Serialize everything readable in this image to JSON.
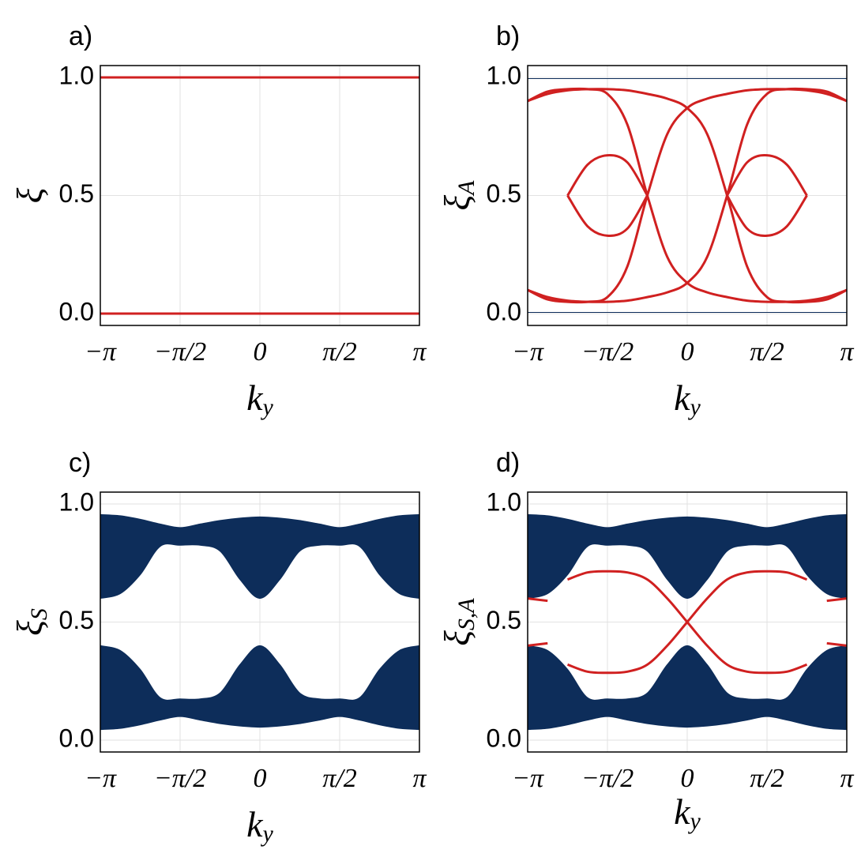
{
  "chart_data": [
    {
      "type": "line",
      "panel": "a)",
      "xlabel": "k",
      "xlabel_sub": "y",
      "ylabel": "ξ",
      "xlim": [
        -3.1416,
        3.1416
      ],
      "ylim": [
        -0.05,
        1.05
      ],
      "grid": true,
      "xticks": [
        {
          "value": -3.1416,
          "label": "−π"
        },
        {
          "value": -1.5708,
          "label": "−π/2"
        },
        0,
        {
          "value": 1.5708,
          "label": "π/2"
        },
        {
          "value": 3.1416,
          "label": "π"
        }
      ],
      "yticks": [
        {
          "value": 0,
          "label": "0.0"
        },
        {
          "value": 0.5,
          "label": "0.5"
        },
        {
          "value": 1,
          "label": "1.0"
        }
      ],
      "x": [
        -3.1416,
        3.1416
      ],
      "series": [
        {
          "color": "#d02020",
          "width": 3,
          "values": [
            1,
            1
          ]
        },
        {
          "color": "#d02020",
          "width": 3,
          "values": [
            0,
            0
          ]
        }
      ]
    },
    {
      "type": "line",
      "panel": "b)",
      "xlabel": "k",
      "xlabel_sub": "y",
      "ylabel": "ξ",
      "ylabel_sub": "A",
      "xlim": [
        -3.1416,
        3.1416
      ],
      "ylim": [
        -0.05,
        1.05
      ],
      "grid": true,
      "xticks": [
        {
          "value": -3.1416,
          "label": "−π"
        },
        {
          "value": -1.5708,
          "label": "−π/2"
        },
        0,
        {
          "value": 1.5708,
          "label": "π/2"
        },
        {
          "value": 3.1416,
          "label": "π"
        }
      ],
      "yticks": [
        {
          "value": 0,
          "label": "0.0"
        },
        {
          "value": 0.5,
          "label": "0.5"
        },
        {
          "value": 1,
          "label": "1.0"
        }
      ],
      "x": [
        -3.1416,
        -2.7489,
        -2.3562,
        -1.9635,
        -1.5708,
        -1.1781,
        -0.7854,
        -0.3927,
        0,
        0.3927,
        0.7854,
        1.1781,
        1.5708,
        1.9635,
        2.3562,
        2.7489,
        3.1416
      ],
      "series": [
        {
          "color": "#0d2d5a",
          "width": 1,
          "values": [
            0.995,
            0.995,
            0.995,
            0.995,
            0.995,
            0.995,
            0.995,
            0.995,
            0.995,
            0.995,
            0.995,
            0.995,
            0.995,
            0.995,
            0.995,
            0.995,
            0.995
          ]
        },
        {
          "color": "#0d2d5a",
          "width": 1,
          "values": [
            0.005,
            0.005,
            0.005,
            0.005,
            0.005,
            0.005,
            0.005,
            0.005,
            0.005,
            0.005,
            0.005,
            0.005,
            0.005,
            0.005,
            0.005,
            0.005,
            0.005
          ]
        },
        {
          "color": "#d02020",
          "width": 3,
          "values": [
            0.9,
            0.93,
            0.945,
            0.95,
            0.95,
            0.945,
            0.93,
            0.91,
            0.87,
            0.76,
            0.5,
            0.2,
            0.07,
            0.05,
            0.05,
            0.06,
            0.1
          ]
        },
        {
          "color": "#d02020",
          "width": 3,
          "values": [
            0.1,
            0.07,
            0.055,
            0.05,
            0.05,
            0.055,
            0.07,
            0.09,
            0.13,
            0.24,
            0.5,
            0.8,
            0.93,
            0.95,
            0.95,
            0.94,
            0.9
          ]
        },
        {
          "color": "#d02020",
          "width": 3,
          "values": [
            0.1,
            0.06,
            0.05,
            0.05,
            0.07,
            0.2,
            0.5,
            0.76,
            0.87,
            0.91,
            0.93,
            0.945,
            0.95,
            0.95,
            0.945,
            0.93,
            0.9
          ]
        },
        {
          "color": "#d02020",
          "width": 3,
          "values": [
            0.9,
            0.94,
            0.95,
            0.95,
            0.93,
            0.8,
            0.5,
            0.24,
            0.13,
            0.09,
            0.07,
            0.055,
            0.05,
            0.05,
            0.055,
            0.07,
            0.1
          ]
        },
        {
          "color": "#d02020",
          "width": 3,
          "values": [
            null,
            null,
            0.5,
            0.63,
            0.67,
            0.64,
            0.5,
            null,
            null,
            null,
            null,
            null,
            null,
            null,
            null,
            null,
            null
          ]
        },
        {
          "color": "#d02020",
          "width": 3,
          "values": [
            null,
            null,
            0.5,
            0.37,
            0.33,
            0.36,
            0.5,
            null,
            null,
            null,
            null,
            null,
            null,
            null,
            null,
            null,
            null
          ]
        },
        {
          "color": "#d02020",
          "width": 3,
          "values": [
            null,
            null,
            null,
            null,
            null,
            null,
            null,
            null,
            null,
            null,
            0.5,
            0.64,
            0.67,
            0.63,
            0.5,
            null,
            null
          ]
        },
        {
          "color": "#d02020",
          "width": 3,
          "values": [
            null,
            null,
            null,
            null,
            null,
            null,
            null,
            null,
            null,
            null,
            0.5,
            0.36,
            0.33,
            0.37,
            0.5,
            null,
            null
          ]
        }
      ]
    },
    {
      "type": "line",
      "panel": "c)",
      "xlabel": "k",
      "xlabel_sub": "y",
      "ylabel": "ξ",
      "ylabel_sub": "S",
      "xlim": [
        -3.1416,
        3.1416
      ],
      "ylim": [
        -0.05,
        1.05
      ],
      "grid": true,
      "xticks": [
        {
          "value": -3.1416,
          "label": "−π"
        },
        {
          "value": -1.5708,
          "label": "−π/2"
        },
        0,
        {
          "value": 1.5708,
          "label": "π/2"
        },
        {
          "value": 3.1416,
          "label": "π"
        }
      ],
      "yticks": [
        {
          "value": 0,
          "label": "0.0"
        },
        {
          "value": 0.5,
          "label": "0.5"
        },
        {
          "value": 1,
          "label": "1.0"
        }
      ],
      "x": [
        -3.1416,
        -2.7489,
        -2.3562,
        -1.9635,
        -1.5708,
        -1.1781,
        -0.7854,
        -0.3927,
        0,
        0.3927,
        0.7854,
        1.1781,
        1.5708,
        1.9635,
        2.3562,
        2.7489,
        3.1416
      ],
      "series": [
        {
          "kind": "band",
          "color": "#0d2d5a",
          "upper": [
            0.955,
            0.95,
            0.935,
            0.915,
            0.9,
            0.915,
            0.93,
            0.94,
            0.945,
            0.94,
            0.93,
            0.915,
            0.9,
            0.915,
            0.935,
            0.95,
            0.955
          ],
          "lower": [
            0.6,
            0.62,
            0.7,
            0.82,
            0.825,
            0.825,
            0.8,
            0.68,
            0.6,
            0.68,
            0.8,
            0.825,
            0.825,
            0.82,
            0.7,
            0.62,
            0.6
          ]
        },
        {
          "kind": "band",
          "color": "#0d2d5a",
          "upper": [
            0.4,
            0.38,
            0.3,
            0.18,
            0.175,
            0.175,
            0.2,
            0.32,
            0.4,
            0.32,
            0.2,
            0.175,
            0.175,
            0.18,
            0.3,
            0.38,
            0.4
          ],
          "lower": [
            0.045,
            0.05,
            0.065,
            0.085,
            0.1,
            0.085,
            0.07,
            0.06,
            0.055,
            0.06,
            0.07,
            0.085,
            0.1,
            0.085,
            0.065,
            0.05,
            0.045
          ]
        }
      ]
    },
    {
      "type": "line",
      "panel": "d)",
      "xlabel": "k",
      "xlabel_sub": "y",
      "ylabel": "ξ",
      "ylabel_sub": "S,A",
      "xlim": [
        -3.1416,
        3.1416
      ],
      "ylim": [
        -0.05,
        1.05
      ],
      "grid": true,
      "xticks": [
        {
          "value": -3.1416,
          "label": "−π"
        },
        {
          "value": -1.5708,
          "label": "−π/2"
        },
        0,
        {
          "value": 1.5708,
          "label": "π/2"
        },
        {
          "value": 3.1416,
          "label": "π"
        }
      ],
      "yticks": [
        {
          "value": 0,
          "label": "0.0"
        },
        {
          "value": 0.5,
          "label": "0.5"
        },
        {
          "value": 1,
          "label": "1.0"
        }
      ],
      "x": [
        -3.1416,
        -2.7489,
        -2.3562,
        -1.9635,
        -1.5708,
        -1.1781,
        -0.7854,
        -0.3927,
        0,
        0.3927,
        0.7854,
        1.1781,
        1.5708,
        1.9635,
        2.3562,
        2.7489,
        3.1416
      ],
      "series": [
        {
          "kind": "band",
          "color": "#0d2d5a",
          "upper": [
            0.955,
            0.95,
            0.935,
            0.915,
            0.9,
            0.915,
            0.93,
            0.94,
            0.945,
            0.94,
            0.93,
            0.915,
            0.9,
            0.915,
            0.935,
            0.95,
            0.955
          ],
          "lower": [
            0.6,
            0.62,
            0.7,
            0.82,
            0.825,
            0.825,
            0.8,
            0.68,
            0.6,
            0.68,
            0.8,
            0.825,
            0.825,
            0.82,
            0.7,
            0.62,
            0.6
          ]
        },
        {
          "kind": "band",
          "color": "#0d2d5a",
          "upper": [
            0.4,
            0.38,
            0.3,
            0.18,
            0.175,
            0.175,
            0.2,
            0.32,
            0.4,
            0.32,
            0.2,
            0.175,
            0.175,
            0.18,
            0.3,
            0.38,
            0.4
          ],
          "lower": [
            0.045,
            0.05,
            0.065,
            0.085,
            0.1,
            0.085,
            0.07,
            0.06,
            0.055,
            0.06,
            0.07,
            0.085,
            0.1,
            0.085,
            0.065,
            0.05,
            0.045
          ]
        },
        {
          "color": "#d02020",
          "width": 3,
          "values": [
            0.6,
            0.59,
            null,
            null,
            null,
            null,
            null,
            null,
            null,
            null,
            null,
            null,
            null,
            null,
            null,
            0.59,
            0.6
          ]
        },
        {
          "color": "#d02020",
          "width": 3,
          "values": [
            0.4,
            0.41,
            null,
            null,
            null,
            null,
            null,
            null,
            null,
            null,
            null,
            null,
            null,
            null,
            null,
            0.41,
            0.4
          ]
        },
        {
          "color": "#d02020",
          "width": 3,
          "values": [
            null,
            null,
            0.68,
            0.71,
            0.715,
            0.71,
            0.68,
            0.6,
            0.5,
            0.4,
            0.32,
            0.29,
            0.285,
            0.29,
            0.32,
            null,
            null
          ]
        },
        {
          "color": "#d02020",
          "width": 3,
          "values": [
            null,
            null,
            0.32,
            0.29,
            0.285,
            0.29,
            0.32,
            0.4,
            0.5,
            0.6,
            0.68,
            0.71,
            0.715,
            0.71,
            0.68,
            null,
            null
          ]
        }
      ]
    }
  ]
}
